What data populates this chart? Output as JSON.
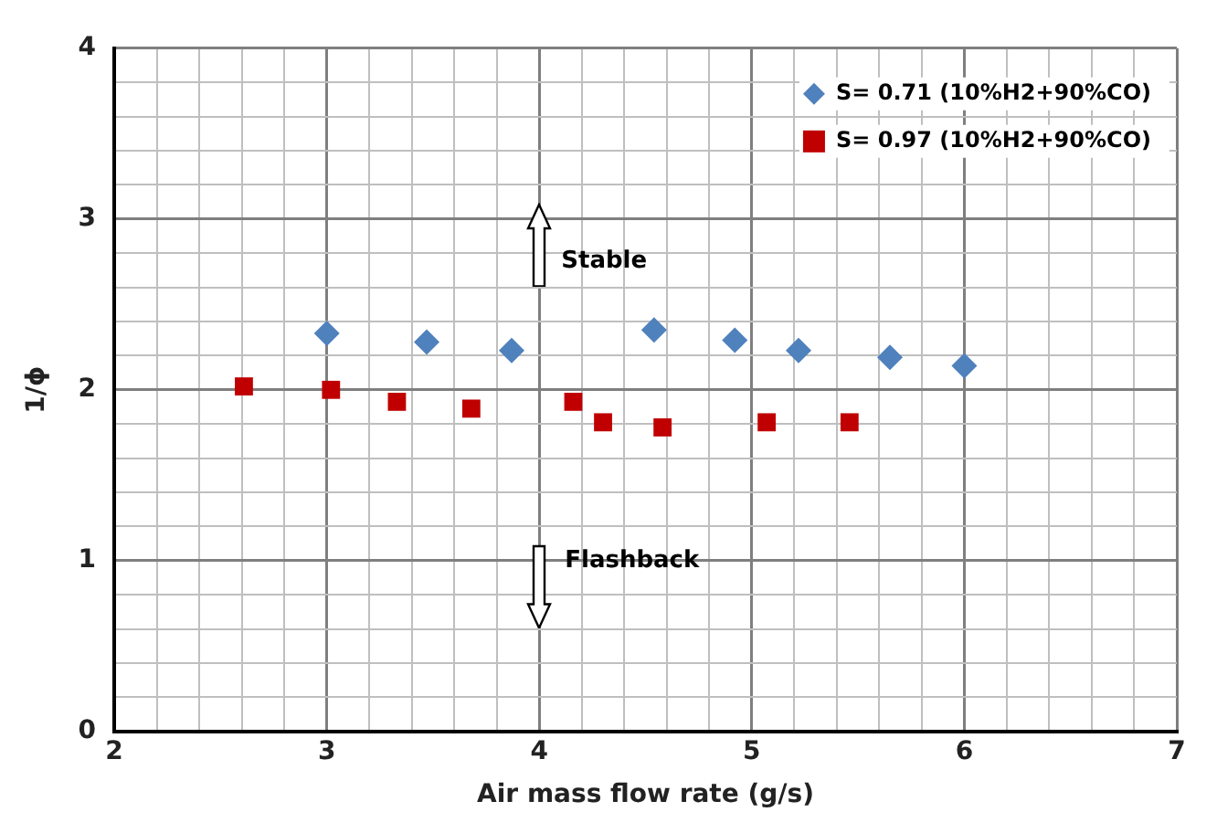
{
  "chart_data": {
    "type": "scatter",
    "xlabel": "Air mass flow rate (g/s)",
    "ylabel": "1/ϕ",
    "xlim": [
      2,
      7
    ],
    "ylim": [
      0,
      4
    ],
    "xticks": [
      2,
      {
        "value": 2.2,
        "label": null
      },
      {
        "value": 2.4,
        "label": null
      },
      {
        "value": 2.6,
        "label": null
      },
      {
        "value": 2.8,
        "label": null
      },
      3,
      {
        "value": 3.2,
        "label": null
      },
      {
        "value": 3.4,
        "label": null
      },
      {
        "value": 3.6,
        "label": null
      },
      {
        "value": 3.8,
        "label": null
      },
      4,
      {
        "value": 4.2,
        "label": null
      },
      {
        "value": 4.4,
        "label": null
      },
      {
        "value": 4.6,
        "label": null
      },
      {
        "value": 4.8,
        "label": null
      },
      5,
      {
        "value": 5.2,
        "label": null
      },
      {
        "value": 5.4,
        "label": null
      },
      {
        "value": 5.6,
        "label": null
      },
      {
        "value": 5.8,
        "label": null
      },
      6,
      {
        "value": 6.2,
        "label": null
      },
      {
        "value": 6.4,
        "label": null
      },
      {
        "value": 6.6,
        "label": null
      },
      {
        "value": 6.8,
        "label": null
      },
      7
    ],
    "yticks": [
      0,
      {
        "value": 0.2,
        "label": null
      },
      {
        "value": 0.4,
        "label": null
      },
      {
        "value": 0.6,
        "label": null
      },
      {
        "value": 0.8,
        "label": null
      },
      1,
      {
        "value": 1.2,
        "label": null
      },
      {
        "value": 1.4,
        "label": null
      },
      {
        "value": 1.6,
        "label": null
      },
      {
        "value": 1.8,
        "label": null
      },
      2,
      {
        "value": 2.2,
        "label": null
      },
      {
        "value": 2.4,
        "label": null
      },
      {
        "value": 2.6,
        "label": null
      },
      {
        "value": 2.8,
        "label": null
      },
      3,
      {
        "value": 3.2,
        "label": null
      },
      {
        "value": 3.4,
        "label": null
      },
      {
        "value": 3.6,
        "label": null
      },
      {
        "value": 3.8,
        "label": null
      },
      4
    ],
    "grid": true,
    "legend": "top right",
    "annotations": [
      "Stable",
      "Flashback"
    ],
    "series": [
      {
        "name": "S= 0.71 (10%H2+90%CO)",
        "color": "#4f81bd",
        "marker": "diamond",
        "x": [
          3.0,
          3.47,
          3.87,
          4.54,
          4.92,
          5.22,
          5.65,
          6.0
        ],
        "values": [
          2.33,
          2.28,
          2.23,
          2.35,
          2.29,
          2.23,
          2.19,
          2.14
        ]
      },
      {
        "name": "S= 0.97 (10%H2+90%CO)",
        "color": "#c00000",
        "marker": "square",
        "x": [
          2.61,
          3.02,
          3.33,
          3.68,
          4.16,
          4.3,
          4.58,
          5.07,
          5.46
        ],
        "values": [
          2.02,
          2.0,
          1.93,
          1.89,
          1.93,
          1.81,
          1.78,
          1.81,
          1.81
        ]
      }
    ]
  }
}
